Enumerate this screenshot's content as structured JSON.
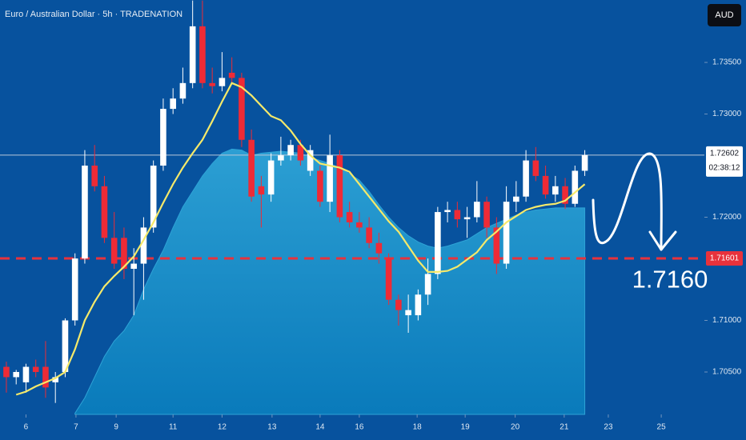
{
  "chart_data": {
    "type": "candlestick",
    "title": "Euro / Australian Dollar · 5h · TRADENATION",
    "currency": "AUD",
    "countdown": "02:38:12",
    "up_color": "#ffffff",
    "down_color": "#ee2b36",
    "background": "#07529e",
    "x": [
      0,
      1,
      2,
      3,
      4,
      5,
      6,
      7,
      8,
      9,
      10,
      11,
      12,
      13,
      14,
      15,
      16,
      17,
      18,
      19,
      20,
      21,
      22,
      23,
      24,
      25,
      26,
      27,
      28,
      29,
      30,
      31,
      32,
      33,
      34,
      35,
      36,
      37,
      38,
      39,
      40,
      41,
      42,
      43,
      44,
      45,
      46,
      47,
      48,
      49,
      50,
      51,
      52,
      53,
      54,
      55,
      56,
      57,
      58,
      59
    ],
    "open": [
      1.7055,
      1.7045,
      1.704,
      1.7055,
      1.7055,
      1.704,
      1.705,
      1.71,
      1.716,
      1.725,
      1.723,
      1.718,
      1.718,
      1.715,
      1.7155,
      1.719,
      1.725,
      1.7305,
      1.7315,
      1.733,
      1.7385,
      1.733,
      1.7327,
      1.734,
      1.7335,
      1.7275,
      1.723,
      1.7222,
      1.7255,
      1.726,
      1.727,
      1.7245,
      1.7245,
      1.7215,
      1.726,
      1.7205,
      1.7195,
      1.719,
      1.7175,
      1.716,
      1.712,
      1.7105,
      1.7105,
      1.7125,
      1.7145,
      1.7205,
      1.7207,
      1.7198,
      1.72,
      1.7215,
      1.719,
      1.7155,
      1.7215,
      1.722,
      1.7255,
      1.724,
      1.7222,
      1.723,
      1.7213,
      1.7245
    ],
    "high": [
      1.706,
      1.7052,
      1.7058,
      1.7062,
      1.708,
      1.705,
      1.7102,
      1.7165,
      1.7265,
      1.727,
      1.724,
      1.7205,
      1.719,
      1.717,
      1.72,
      1.7255,
      1.7315,
      1.7325,
      1.7345,
      1.741,
      1.741,
      1.7345,
      1.736,
      1.7355,
      1.734,
      1.7285,
      1.724,
      1.7262,
      1.7278,
      1.7275,
      1.7275,
      1.727,
      1.725,
      1.728,
      1.7265,
      1.7215,
      1.7205,
      1.72,
      1.7185,
      1.7165,
      1.7125,
      1.7125,
      1.713,
      1.716,
      1.721,
      1.7215,
      1.7215,
      1.721,
      1.7235,
      1.722,
      1.72,
      1.723,
      1.7235,
      1.7265,
      1.7268,
      1.725,
      1.724,
      1.7238,
      1.725,
      1.7265
    ],
    "low": [
      1.703,
      1.7038,
      1.703,
      1.7045,
      1.7025,
      1.702,
      1.7045,
      1.7095,
      1.7155,
      1.7225,
      1.7175,
      1.715,
      1.714,
      1.7105,
      1.712,
      1.7185,
      1.7245,
      1.73,
      1.731,
      1.7325,
      1.7325,
      1.732,
      1.7322,
      1.733,
      1.7268,
      1.7215,
      1.719,
      1.7215,
      1.725,
      1.7255,
      1.725,
      1.724,
      1.721,
      1.7205,
      1.7195,
      1.719,
      1.7185,
      1.717,
      1.7155,
      1.7115,
      1.7095,
      1.7088,
      1.71,
      1.7115,
      1.714,
      1.7195,
      1.719,
      1.718,
      1.7195,
      1.718,
      1.7145,
      1.715,
      1.7205,
      1.7215,
      1.7235,
      1.7218,
      1.7215,
      1.7208,
      1.721,
      1.724
    ],
    "close": [
      1.7045,
      1.705,
      1.7055,
      1.705,
      1.7035,
      1.7045,
      1.71,
      1.716,
      1.725,
      1.723,
      1.718,
      1.7155,
      1.715,
      1.7155,
      1.719,
      1.725,
      1.7305,
      1.7315,
      1.733,
      1.7385,
      1.733,
      1.7327,
      1.7335,
      1.7335,
      1.7275,
      1.722,
      1.7222,
      1.7255,
      1.726,
      1.727,
      1.7255,
      1.7265,
      1.7215,
      1.726,
      1.72,
      1.7195,
      1.719,
      1.7175,
      1.7165,
      1.712,
      1.711,
      1.711,
      1.7125,
      1.7145,
      1.7205,
      1.7207,
      1.7198,
      1.72,
      1.7215,
      1.719,
      1.7155,
      1.7215,
      1.722,
      1.7255,
      1.724,
      1.7222,
      1.723,
      1.7213,
      1.7245,
      1.72602
    ],
    "ma": {
      "color": "#f5e96a",
      "values": [
        null,
        1.7028,
        1.7031,
        1.7036,
        1.704,
        1.7044,
        1.705,
        1.7072,
        1.71,
        1.7118,
        1.7133,
        1.7143,
        1.7152,
        1.7162,
        1.7178,
        1.7195,
        1.7214,
        1.7232,
        1.7248,
        1.7262,
        1.7275,
        1.7293,
        1.7312,
        1.733,
        1.7326,
        1.7318,
        1.7308,
        1.7298,
        1.7294,
        1.7284,
        1.7271,
        1.726,
        1.7252,
        1.725,
        1.7248,
        1.7244,
        1.7232,
        1.722,
        1.7208,
        1.7196,
        1.7186,
        1.7172,
        1.7158,
        1.7147,
        1.7147,
        1.7148,
        1.7152,
        1.7159,
        1.7166,
        1.7178,
        1.7186,
        1.7195,
        1.7201,
        1.7207,
        1.721,
        1.7212,
        1.7213,
        1.7216,
        1.7224,
        1.7232
      ]
    },
    "area": {
      "color": "#2ea3d6",
      "values": [
        null,
        null,
        null,
        null,
        null,
        null,
        null,
        1.701,
        1.7025,
        1.7045,
        1.7065,
        1.708,
        1.709,
        1.7105,
        1.713,
        1.715,
        1.7168,
        1.719,
        1.721,
        1.7225,
        1.724,
        1.7252,
        1.7262,
        1.7266,
        1.7265,
        1.726,
        1.7262,
        1.7263,
        1.7264,
        1.7263,
        1.7262,
        1.7258,
        1.7255,
        1.7252,
        1.7248,
        1.7242,
        1.7236,
        1.7225,
        1.7212,
        1.72,
        1.719,
        1.7182,
        1.7176,
        1.7172,
        1.717,
        1.7172,
        1.7175,
        1.7178,
        1.7184,
        1.719,
        1.7194,
        1.7198,
        1.7202,
        1.7205,
        1.7207,
        1.7208,
        1.7209,
        1.7209,
        1.7209,
        1.7209
      ]
    },
    "price_lines": [
      {
        "value": 1.72602,
        "label": "1.72602",
        "color": "#b9c7d8",
        "dashed": false
      },
      {
        "value": 1.71601,
        "label": "1.71601",
        "color": "#e8323c",
        "dashed": true
      }
    ],
    "annotation": {
      "value": 1.716,
      "label": "1.7160"
    },
    "xlim": [
      -0.65,
      71.2
    ],
    "ylim": [
      1.70089,
      1.74105
    ],
    "yticks": [
      {
        "value": 1.705,
        "label": "1.70500"
      },
      {
        "value": 1.71,
        "label": "1.71000"
      },
      {
        "value": 1.72,
        "label": "1.72000"
      },
      {
        "value": 1.73,
        "label": "1.73000"
      },
      {
        "value": 1.735,
        "label": "1.73500"
      }
    ],
    "xticks": [
      {
        "value": 2,
        "label": "6"
      },
      {
        "value": 7.1,
        "label": "7"
      },
      {
        "value": 11.2,
        "label": "9"
      },
      {
        "value": 17,
        "label": "11"
      },
      {
        "value": 22,
        "label": "12"
      },
      {
        "value": 27.1,
        "label": "13"
      },
      {
        "value": 32,
        "label": "14"
      },
      {
        "value": 36,
        "label": "16"
      },
      {
        "value": 41.9,
        "label": "18"
      },
      {
        "value": 46.8,
        "label": "19"
      },
      {
        "value": 51.9,
        "label": "20"
      },
      {
        "value": 56.9,
        "label": "21"
      },
      {
        "value": 61.4,
        "label": "23"
      },
      {
        "value": 66.8,
        "label": "25"
      }
    ]
  }
}
